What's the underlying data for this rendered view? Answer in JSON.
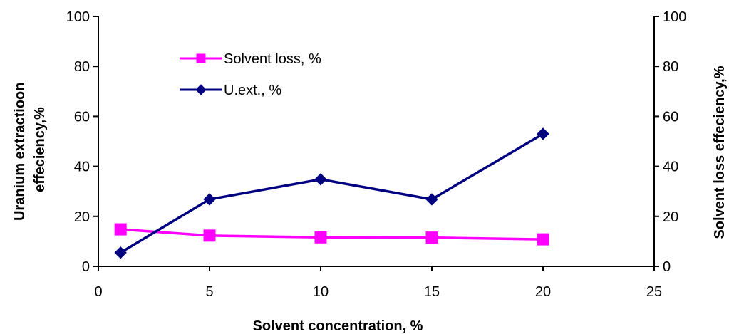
{
  "chart_data": {
    "type": "line",
    "title": "",
    "xlabel": "Solvent concentration, %",
    "ylabel_left": "Uranium extractioon",
    "ylabel_left_line2": "effeciency,%",
    "ylabel_right": "Solvent loss effeciency,%",
    "xlim": [
      0,
      25
    ],
    "ylim_left": [
      0,
      100
    ],
    "ylim_right": [
      0,
      100
    ],
    "x_ticks": [
      0,
      5,
      10,
      15,
      20,
      25
    ],
    "y_ticks_left": [
      0,
      20,
      40,
      60,
      80,
      100
    ],
    "y_ticks_right": [
      0,
      20,
      40,
      60,
      80,
      100
    ],
    "grid": false,
    "legend_position": "top-left",
    "series": [
      {
        "name": "Solvent loss, %",
        "axis": "right",
        "color": "#ff00ff",
        "marker": "square",
        "x": [
          1,
          5,
          10,
          15,
          20
        ],
        "values": [
          14.8,
          12.3,
          11.6,
          11.5,
          10.8
        ]
      },
      {
        "name": "U.ext., %",
        "axis": "left",
        "color": "#000080",
        "marker": "diamond",
        "x": [
          1,
          5,
          10,
          15,
          20
        ],
        "values": [
          5.5,
          26.8,
          34.8,
          26.8,
          53
        ]
      }
    ]
  }
}
